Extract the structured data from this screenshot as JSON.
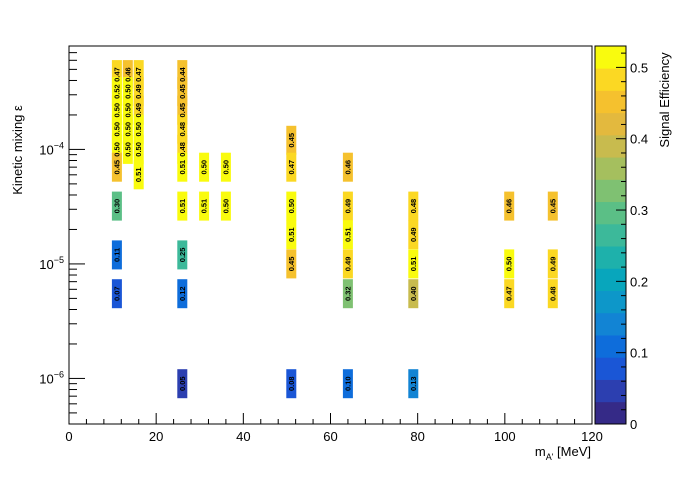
{
  "chart_data": {
    "type": "heatmap",
    "title": "",
    "xlabel": "m",
    "xlabel_sub": "A'",
    "xlabel_unit": " [MeV]",
    "ylabel": "Kinetic mixing ε",
    "zlabel": "Signal Efficiency",
    "xlim": [
      0,
      120
    ],
    "ylim": [
      4e-07,
      0.0008
    ],
    "y_scale": "log",
    "zlim": [
      0,
      0.53
    ],
    "x_ticks": [
      "0",
      "20",
      "40",
      "60",
      "80",
      "100",
      "120"
    ],
    "y_ticks": [
      "10",
      "10",
      "10"
    ],
    "y_tick_exponents": [
      "−6",
      "−5",
      "−4"
    ],
    "z_ticks": [
      "0",
      "0.1",
      "0.2",
      "0.3",
      "0.4",
      "0.5"
    ],
    "colormap": [
      "#352a87",
      "#2c3fb0",
      "#1a56d6",
      "#0e6ddb",
      "#1284d4",
      "#0d97c9",
      "#08a6bc",
      "#1eb1ab",
      "#3cb99a",
      "#5bbf86",
      "#7fc172",
      "#a5bf5e",
      "#c8bb4e",
      "#e3b93e",
      "#f5c12e",
      "#fbd823",
      "#f9fb0e"
    ],
    "grid": false,
    "cells": [
      {
        "x": 11,
        "y": 0.00045,
        "value": 0.47
      },
      {
        "x": 11,
        "y": 0.00032,
        "value": 0.52
      },
      {
        "x": 11,
        "y": 0.00022,
        "value": 0.5
      },
      {
        "x": 11,
        "y": 0.00015,
        "value": 0.5
      },
      {
        "x": 11,
        "y": 0.0001,
        "value": 0.5
      },
      {
        "x": 11,
        "y": 7e-05,
        "value": 0.45
      },
      {
        "x": 11,
        "y": 3.2e-05,
        "value": 0.3
      },
      {
        "x": 11,
        "y": 1.2e-05,
        "value": 0.11
      },
      {
        "x": 11,
        "y": 5.5e-06,
        "value": 0.07
      },
      {
        "x": 13.5,
        "y": 0.00045,
        "value": 0.46
      },
      {
        "x": 13.5,
        "y": 0.00032,
        "value": 0.5
      },
      {
        "x": 13.5,
        "y": 0.00022,
        "value": 0.5
      },
      {
        "x": 13.5,
        "y": 0.00015,
        "value": 0.5
      },
      {
        "x": 13.5,
        "y": 0.0001,
        "value": 0.5
      },
      {
        "x": 16,
        "y": 0.00045,
        "value": 0.47
      },
      {
        "x": 16,
        "y": 0.00032,
        "value": 0.49
      },
      {
        "x": 16,
        "y": 0.00022,
        "value": 0.49
      },
      {
        "x": 16,
        "y": 0.00015,
        "value": 0.5
      },
      {
        "x": 16,
        "y": 0.0001,
        "value": 0.5
      },
      {
        "x": 16,
        "y": 6e-05,
        "value": 0.51
      },
      {
        "x": 26,
        "y": 0.00045,
        "value": 0.44
      },
      {
        "x": 26,
        "y": 0.00032,
        "value": 0.45
      },
      {
        "x": 26,
        "y": 0.00022,
        "value": 0.45
      },
      {
        "x": 26,
        "y": 0.00015,
        "value": 0.48
      },
      {
        "x": 26,
        "y": 0.0001,
        "value": 0.48
      },
      {
        "x": 26,
        "y": 7e-05,
        "value": 0.51
      },
      {
        "x": 26,
        "y": 3.2e-05,
        "value": 0.51
      },
      {
        "x": 26,
        "y": 1.2e-05,
        "value": 0.25
      },
      {
        "x": 26,
        "y": 5.5e-06,
        "value": 0.12
      },
      {
        "x": 26,
        "y": 9e-07,
        "value": 0.05
      },
      {
        "x": 31,
        "y": 7e-05,
        "value": 0.5
      },
      {
        "x": 31,
        "y": 3.2e-05,
        "value": 0.51
      },
      {
        "x": 36,
        "y": 7e-05,
        "value": 0.5
      },
      {
        "x": 36,
        "y": 3.2e-05,
        "value": 0.5
      },
      {
        "x": 51,
        "y": 0.00012,
        "value": 0.45
      },
      {
        "x": 51,
        "y": 7e-05,
        "value": 0.47
      },
      {
        "x": 51,
        "y": 3.2e-05,
        "value": 0.5
      },
      {
        "x": 51,
        "y": 1.8e-05,
        "value": 0.51
      },
      {
        "x": 51,
        "y": 1e-05,
        "value": 0.45
      },
      {
        "x": 51,
        "y": 9e-07,
        "value": 0.08
      },
      {
        "x": 64,
        "y": 7e-05,
        "value": 0.46
      },
      {
        "x": 64,
        "y": 3.2e-05,
        "value": 0.49
      },
      {
        "x": 64,
        "y": 1.8e-05,
        "value": 0.51
      },
      {
        "x": 64,
        "y": 1e-05,
        "value": 0.49
      },
      {
        "x": 64,
        "y": 5.5e-06,
        "value": 0.32
      },
      {
        "x": 64,
        "y": 9e-07,
        "value": 0.1
      },
      {
        "x": 79,
        "y": 3.2e-05,
        "value": 0.48
      },
      {
        "x": 79,
        "y": 1.8e-05,
        "value": 0.49
      },
      {
        "x": 79,
        "y": 1e-05,
        "value": 0.51
      },
      {
        "x": 79,
        "y": 5.5e-06,
        "value": 0.4
      },
      {
        "x": 79,
        "y": 9e-07,
        "value": 0.13
      },
      {
        "x": 101,
        "y": 3.2e-05,
        "value": 0.46
      },
      {
        "x": 101,
        "y": 1e-05,
        "value": 0.5
      },
      {
        "x": 101,
        "y": 5.5e-06,
        "value": 0.47
      },
      {
        "x": 111,
        "y": 3.2e-05,
        "value": 0.45
      },
      {
        "x": 111,
        "y": 1e-05,
        "value": 0.49
      },
      {
        "x": 111,
        "y": 5.5e-06,
        "value": 0.48
      }
    ]
  }
}
